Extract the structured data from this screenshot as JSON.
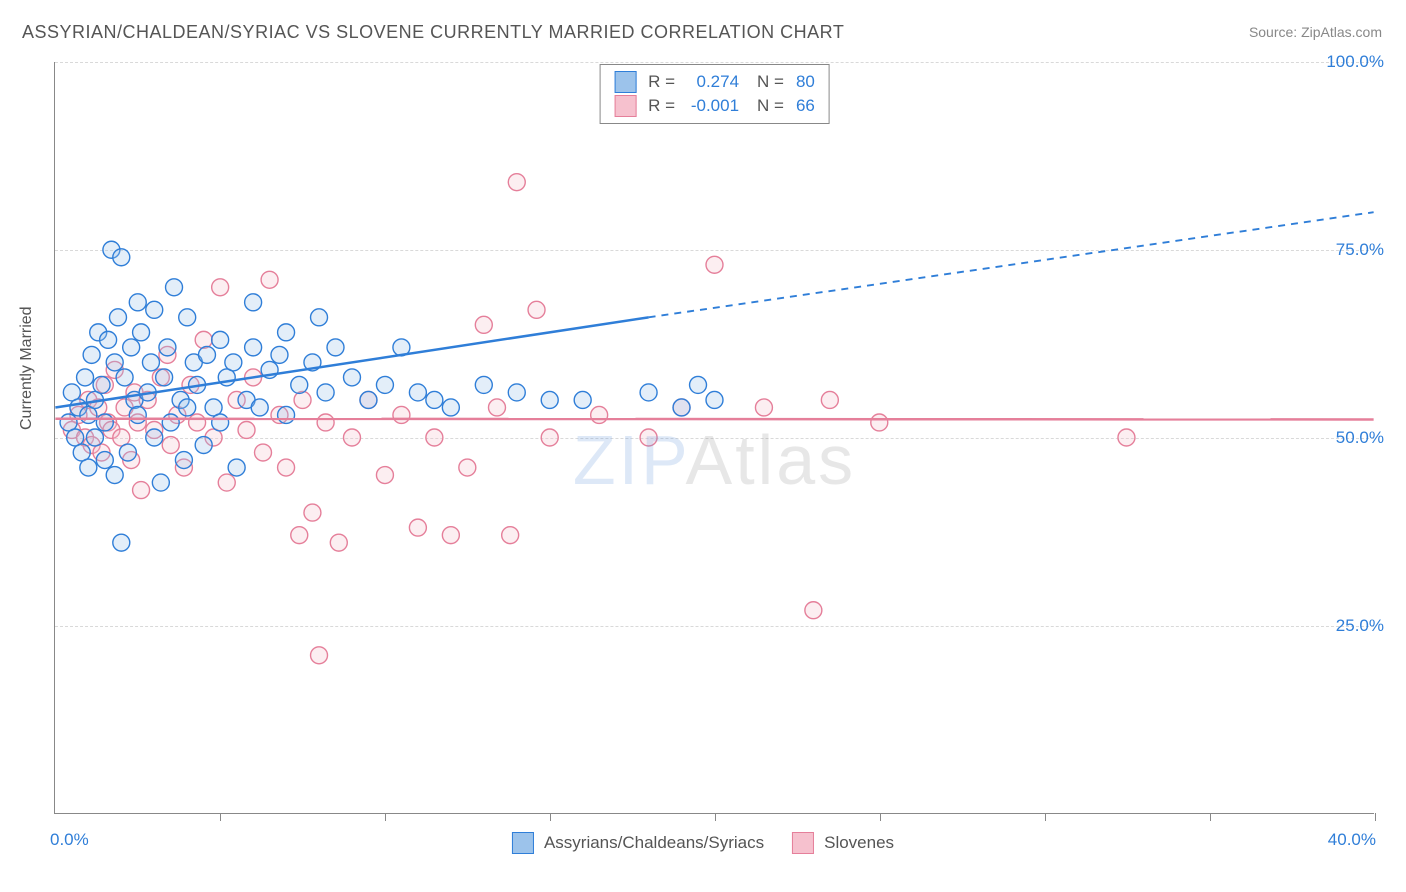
{
  "title": "ASSYRIAN/CHALDEAN/SYRIAC VS SLOVENE CURRENTLY MARRIED CORRELATION CHART",
  "source_label": "Source: ",
  "source_name": "ZipAtlas.com",
  "watermark_zip": "ZIP",
  "watermark_atlas": "Atlas",
  "chart": {
    "type": "scatter",
    "ylabel": "Currently Married",
    "xlim": [
      0,
      40
    ],
    "ylim": [
      0,
      100
    ],
    "xtick_positions": [
      5,
      10,
      15,
      20,
      25,
      30,
      35,
      40
    ],
    "ytick_positions": [
      25,
      50,
      75,
      100
    ],
    "ytick_labels": [
      "25.0%",
      "50.0%",
      "75.0%",
      "100.0%"
    ],
    "xmin_label": "0.0%",
    "xmax_label": "40.0%",
    "grid_color": "#d9d9d9",
    "axis_color": "#888888",
    "background_color": "#ffffff",
    "marker_radius": 8.5,
    "marker_fill_opacity": 0.28,
    "marker_stroke_width": 1.4,
    "line_stroke_width": 2.5,
    "series": [
      {
        "id": "assyrians",
        "label": "Assyrians/Chaldeans/Syriacs",
        "color_stroke": "#2f7ed8",
        "color_fill": "#9cc3eb",
        "r_label": "R =",
        "r_value": "0.274",
        "n_label": "N =",
        "n_value": "80",
        "trend": {
          "x1": 0,
          "y1": 54,
          "x2_solid": 18,
          "y2_solid": 66,
          "x2": 40,
          "y2": 80,
          "dash": "7,6"
        },
        "points": [
          [
            0.4,
            52
          ],
          [
            0.5,
            56
          ],
          [
            0.6,
            50
          ],
          [
            0.7,
            54
          ],
          [
            0.8,
            48
          ],
          [
            0.9,
            58
          ],
          [
            1.0,
            53
          ],
          [
            1.0,
            46
          ],
          [
            1.1,
            61
          ],
          [
            1.2,
            55
          ],
          [
            1.2,
            50
          ],
          [
            1.3,
            64
          ],
          [
            1.4,
            57
          ],
          [
            1.5,
            47
          ],
          [
            1.5,
            52
          ],
          [
            1.6,
            63
          ],
          [
            1.7,
            75
          ],
          [
            1.8,
            60
          ],
          [
            1.8,
            45
          ],
          [
            1.9,
            66
          ],
          [
            2.0,
            74
          ],
          [
            2.0,
            36
          ],
          [
            2.1,
            58
          ],
          [
            2.2,
            48
          ],
          [
            2.3,
            62
          ],
          [
            2.4,
            55
          ],
          [
            2.5,
            53
          ],
          [
            2.5,
            68
          ],
          [
            2.6,
            64
          ],
          [
            2.8,
            56
          ],
          [
            2.9,
            60
          ],
          [
            3.0,
            50
          ],
          [
            3.0,
            67
          ],
          [
            3.2,
            44
          ],
          [
            3.3,
            58
          ],
          [
            3.4,
            62
          ],
          [
            3.5,
            52
          ],
          [
            3.6,
            70
          ],
          [
            3.8,
            55
          ],
          [
            3.9,
            47
          ],
          [
            4.0,
            66
          ],
          [
            4.0,
            54
          ],
          [
            4.2,
            60
          ],
          [
            4.3,
            57
          ],
          [
            4.5,
            49
          ],
          [
            4.6,
            61
          ],
          [
            4.8,
            54
          ],
          [
            5.0,
            63
          ],
          [
            5.0,
            52
          ],
          [
            5.2,
            58
          ],
          [
            5.4,
            60
          ],
          [
            5.5,
            46
          ],
          [
            5.8,
            55
          ],
          [
            6.0,
            68
          ],
          [
            6.0,
            62
          ],
          [
            6.2,
            54
          ],
          [
            6.5,
            59
          ],
          [
            6.8,
            61
          ],
          [
            7.0,
            53
          ],
          [
            7.0,
            64
          ],
          [
            7.4,
            57
          ],
          [
            7.8,
            60
          ],
          [
            8.0,
            66
          ],
          [
            8.2,
            56
          ],
          [
            8.5,
            62
          ],
          [
            9.0,
            58
          ],
          [
            9.5,
            55
          ],
          [
            10.0,
            57
          ],
          [
            10.5,
            62
          ],
          [
            11.0,
            56
          ],
          [
            11.5,
            55
          ],
          [
            12.0,
            54
          ],
          [
            13.0,
            57
          ],
          [
            14.0,
            56
          ],
          [
            15.0,
            55
          ],
          [
            16.0,
            55
          ],
          [
            18.0,
            56
          ],
          [
            19.0,
            54
          ],
          [
            19.5,
            57
          ],
          [
            20.0,
            55
          ]
        ]
      },
      {
        "id": "slovenes",
        "label": "Slovenes",
        "color_stroke": "#e57f9a",
        "color_fill": "#f6c1ce",
        "r_label": "R =",
        "r_value": "-0.001",
        "n_label": "N =",
        "n_value": "66",
        "trend": {
          "x1": 0,
          "y1": 52.5,
          "x2_solid": 40,
          "y2_solid": 52.4,
          "x2": 40,
          "y2": 52.4,
          "dash": ""
        },
        "points": [
          [
            0.5,
            51
          ],
          [
            0.7,
            53
          ],
          [
            0.9,
            50
          ],
          [
            1.0,
            55
          ],
          [
            1.1,
            49
          ],
          [
            1.3,
            54
          ],
          [
            1.4,
            48
          ],
          [
            1.5,
            57
          ],
          [
            1.6,
            52
          ],
          [
            1.7,
            51
          ],
          [
            1.8,
            59
          ],
          [
            2.0,
            50
          ],
          [
            2.1,
            54
          ],
          [
            2.3,
            47
          ],
          [
            2.4,
            56
          ],
          [
            2.5,
            52
          ],
          [
            2.6,
            43
          ],
          [
            2.8,
            55
          ],
          [
            3.0,
            51
          ],
          [
            3.2,
            58
          ],
          [
            3.4,
            61
          ],
          [
            3.5,
            49
          ],
          [
            3.7,
            53
          ],
          [
            3.9,
            46
          ],
          [
            4.1,
            57
          ],
          [
            4.3,
            52
          ],
          [
            4.5,
            63
          ],
          [
            4.8,
            50
          ],
          [
            5.0,
            70
          ],
          [
            5.2,
            44
          ],
          [
            5.5,
            55
          ],
          [
            5.8,
            51
          ],
          [
            6.0,
            58
          ],
          [
            6.3,
            48
          ],
          [
            6.5,
            71
          ],
          [
            6.8,
            53
          ],
          [
            7.0,
            46
          ],
          [
            7.4,
            37
          ],
          [
            7.5,
            55
          ],
          [
            7.8,
            40
          ],
          [
            8.0,
            21
          ],
          [
            8.2,
            52
          ],
          [
            8.6,
            36
          ],
          [
            9.0,
            50
          ],
          [
            9.5,
            55
          ],
          [
            10.0,
            45
          ],
          [
            10.5,
            53
          ],
          [
            11.0,
            38
          ],
          [
            11.5,
            50
          ],
          [
            12.0,
            37
          ],
          [
            12.5,
            46
          ],
          [
            13.0,
            65
          ],
          [
            13.4,
            54
          ],
          [
            13.8,
            37
          ],
          [
            14.0,
            84
          ],
          [
            14.6,
            67
          ],
          [
            15.0,
            50
          ],
          [
            16.5,
            53
          ],
          [
            18.0,
            50
          ],
          [
            19.0,
            54
          ],
          [
            20.0,
            73
          ],
          [
            21.5,
            54
          ],
          [
            23.0,
            27
          ],
          [
            23.5,
            55
          ],
          [
            25.0,
            52
          ],
          [
            32.5,
            50
          ]
        ]
      }
    ]
  }
}
